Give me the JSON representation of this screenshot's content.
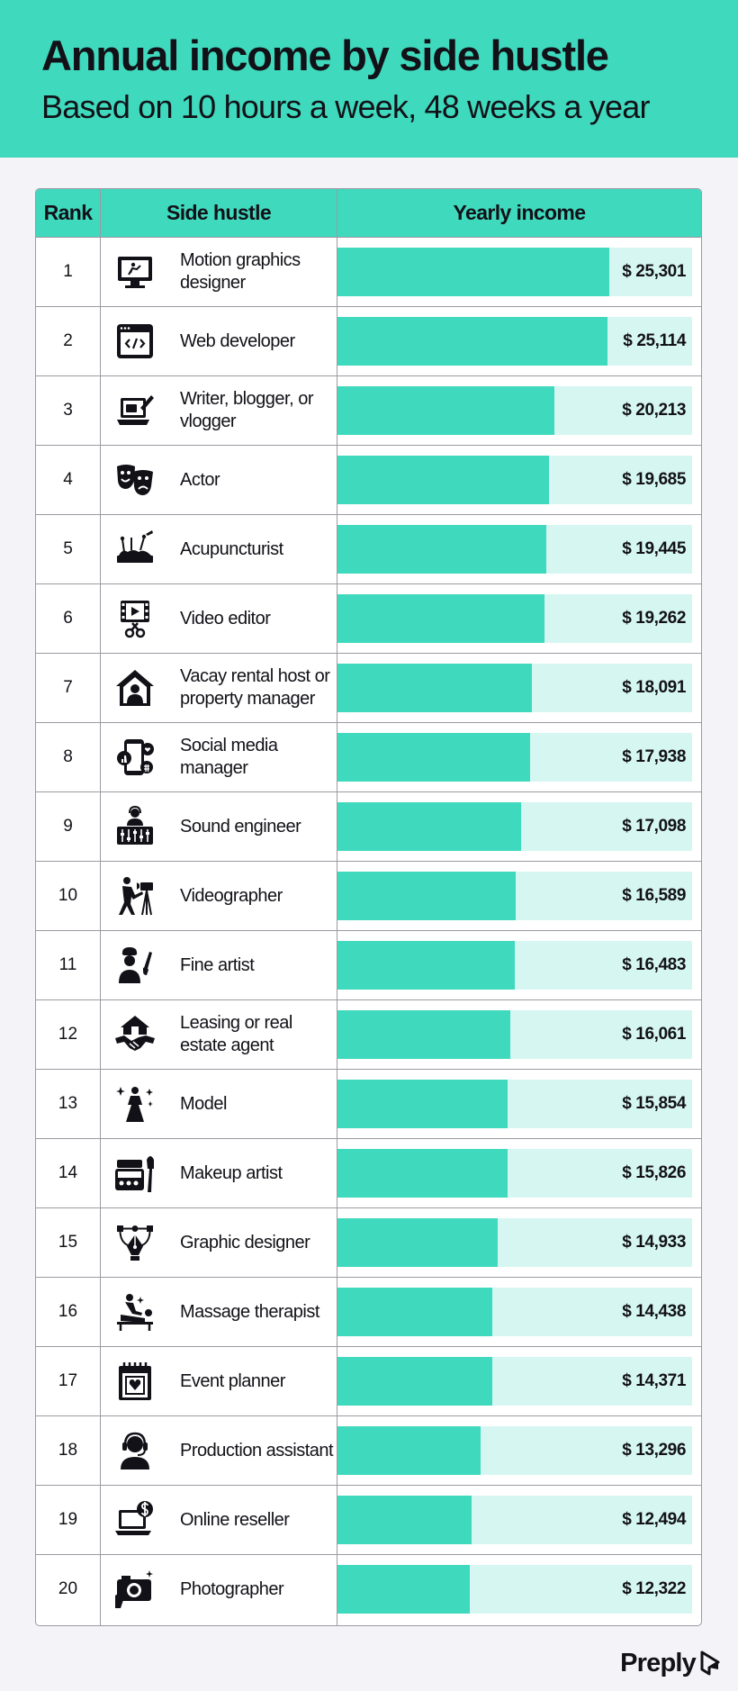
{
  "header": {
    "title": "Annual income by side hustle",
    "subtitle": "Based on 10 hours a week, 48 weeks a year"
  },
  "table": {
    "columns": [
      "Rank",
      "Side hustle",
      "Yearly income"
    ]
  },
  "brand": {
    "name": "Preply"
  },
  "colors": {
    "accent": "#3fd9be",
    "bar_track": "#d6f7f1",
    "background": "#f4f3f8",
    "text": "#121117"
  },
  "chart_data": {
    "type": "bar",
    "orientation": "horizontal",
    "title": "Annual income by side hustle",
    "subtitle": "Based on 10 hours a week, 48 weeks a year",
    "xlim": [
      0,
      33000
    ],
    "rows": [
      {
        "rank": "1",
        "name": "Motion graphics designer",
        "value": 25301,
        "label": "$ 25,301",
        "icon": "motion-graphics-icon"
      },
      {
        "rank": "2",
        "name": "Web developer",
        "value": 25114,
        "label": "$ 25,114",
        "icon": "code-window-icon"
      },
      {
        "rank": "3",
        "name": "Writer, blogger, or vlogger",
        "value": 20213,
        "label": "$ 20,213",
        "icon": "laptop-pen-icon"
      },
      {
        "rank": "4",
        "name": "Actor",
        "value": 19685,
        "label": "$ 19,685",
        "icon": "theater-masks-icon"
      },
      {
        "rank": "5",
        "name": "Acupuncturist",
        "value": 19445,
        "label": "$ 19,445",
        "icon": "acupuncture-needles-icon"
      },
      {
        "rank": "6",
        "name": "Video editor",
        "value": 19262,
        "label": "$ 19,262",
        "icon": "film-scissors-icon"
      },
      {
        "rank": "7",
        "name": "Vacay rental host or property manager",
        "value": 18091,
        "label": "$ 18,091",
        "icon": "house-host-icon"
      },
      {
        "rank": "8",
        "name": "Social media manager",
        "value": 17938,
        "label": "$ 17,938",
        "icon": "phone-social-icon"
      },
      {
        "rank": "9",
        "name": "Sound engineer",
        "value": 17098,
        "label": "$ 17,098",
        "icon": "mixing-desk-icon"
      },
      {
        "rank": "10",
        "name": "Videographer",
        "value": 16589,
        "label": "$ 16,589",
        "icon": "video-camera-tripod-icon"
      },
      {
        "rank": "11",
        "name": "Fine artist",
        "value": 16483,
        "label": "$ 16,483",
        "icon": "artist-brush-icon"
      },
      {
        "rank": "12",
        "name": "Leasing or real estate agent",
        "value": 16061,
        "label": "$ 16,061",
        "icon": "house-handshake-icon"
      },
      {
        "rank": "13",
        "name": "Model",
        "value": 15854,
        "label": "$ 15,854",
        "icon": "model-sparkle-icon"
      },
      {
        "rank": "14",
        "name": "Makeup artist",
        "value": 15826,
        "label": "$ 15,826",
        "icon": "makeup-palette-icon"
      },
      {
        "rank": "15",
        "name": "Graphic designer",
        "value": 14933,
        "label": "$ 14,933",
        "icon": "pen-tool-icon"
      },
      {
        "rank": "16",
        "name": "Massage therapist",
        "value": 14438,
        "label": "$ 14,438",
        "icon": "massage-table-icon"
      },
      {
        "rank": "17",
        "name": "Event planner",
        "value": 14371,
        "label": "$ 14,371",
        "icon": "calendar-heart-icon"
      },
      {
        "rank": "18",
        "name": "Production assistant",
        "value": 13296,
        "label": "$ 13,296",
        "icon": "headset-person-icon"
      },
      {
        "rank": "19",
        "name": "Online reseller",
        "value": 12494,
        "label": "$ 12,494",
        "icon": "laptop-dollar-icon"
      },
      {
        "rank": "20",
        "name": "Photographer",
        "value": 12322,
        "label": "$ 12,322",
        "icon": "camera-hand-icon"
      }
    ]
  }
}
